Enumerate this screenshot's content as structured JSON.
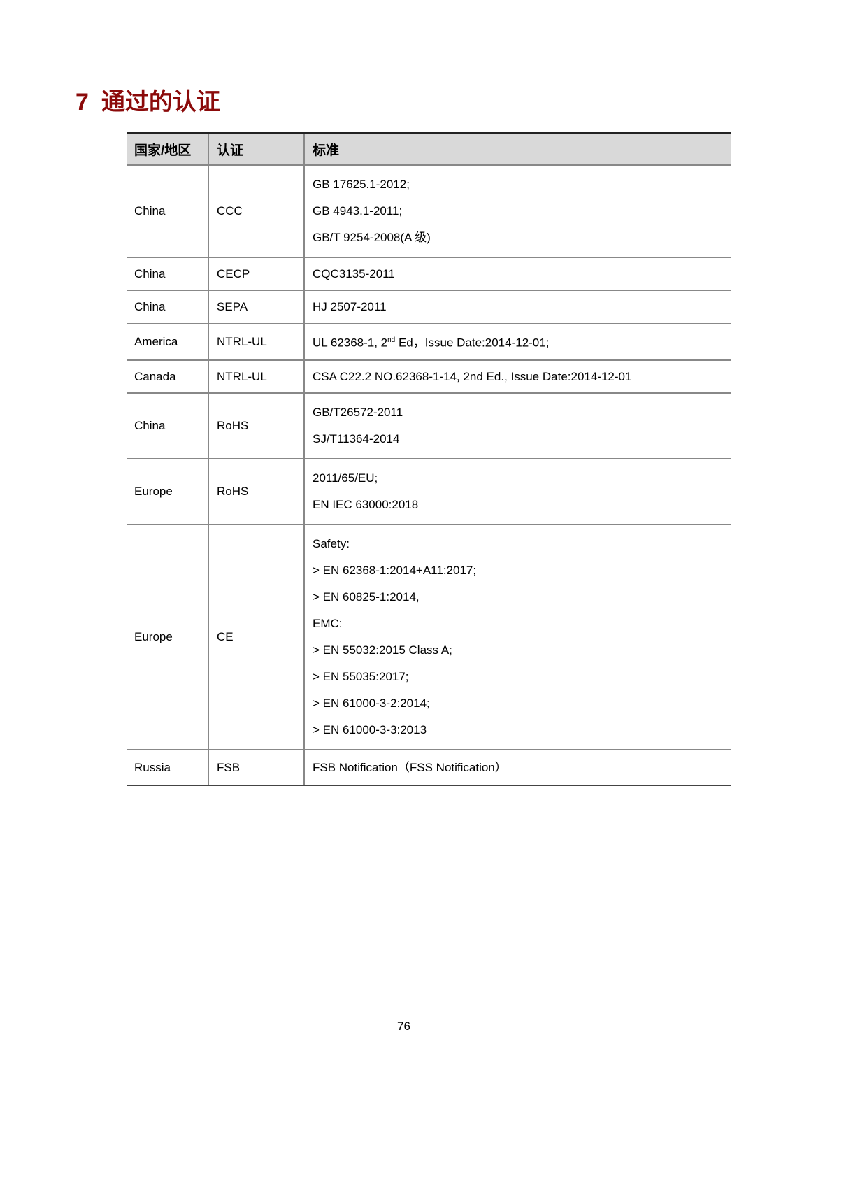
{
  "title": {
    "number": "7",
    "text": "通过的认证"
  },
  "headers": [
    "国家/地区",
    "认证",
    "标准"
  ],
  "rows": [
    {
      "country": "China",
      "cert": "CCC",
      "lines": [
        "GB 17625.1-2012;",
        "GB 4943.1-2011;",
        "GB/T 9254-2008(A 级)"
      ],
      "h": 127
    },
    {
      "country": "China",
      "cert": "CECP",
      "lines": [
        "CQC3135-2011"
      ],
      "h": 47
    },
    {
      "country": "China",
      "cert": "SEPA",
      "lines": [
        "HJ 2507-2011"
      ],
      "h": 48
    },
    {
      "country": "America",
      "cert": "NTRL-UL",
      "lines": [
        "UL 62368-1, 2|nd| Ed，Issue Date:2014-12-01;"
      ],
      "h": 52
    },
    {
      "country": "Canada",
      "cert": "NTRL-UL",
      "lines": [
        "CSA C22.2 NO.62368-1-14, 2nd Ed., Issue Date:2014-12-01"
      ],
      "h": 47
    },
    {
      "country": "China",
      "cert": "RoHS",
      "lines": [
        "GB/T26572-2011",
        "SJ/T11364-2014"
      ],
      "h": 85
    },
    {
      "country": "Europe",
      "cert": "RoHS",
      "lines": [
        "2011/65/EU;",
        "EN IEC 63000:2018"
      ],
      "h": 90
    },
    {
      "country": "Europe",
      "cert": "CE",
      "lines": [
        "Safety:",
        "> EN 62368-1:2014+A11:2017;",
        "> EN 60825-1:2014,",
        "EMC:",
        "> EN 55032:2015 Class A;",
        "> EN 55035:2017;",
        "> EN 61000-3-2:2014;",
        "> EN 61000-3-3:2013"
      ],
      "h": 313
    },
    {
      "country": "Russia",
      "cert": "FSB",
      "lines": [
        "FSB Notification（FSS Notification）"
      ],
      "h": 51
    }
  ],
  "page_number": "76"
}
